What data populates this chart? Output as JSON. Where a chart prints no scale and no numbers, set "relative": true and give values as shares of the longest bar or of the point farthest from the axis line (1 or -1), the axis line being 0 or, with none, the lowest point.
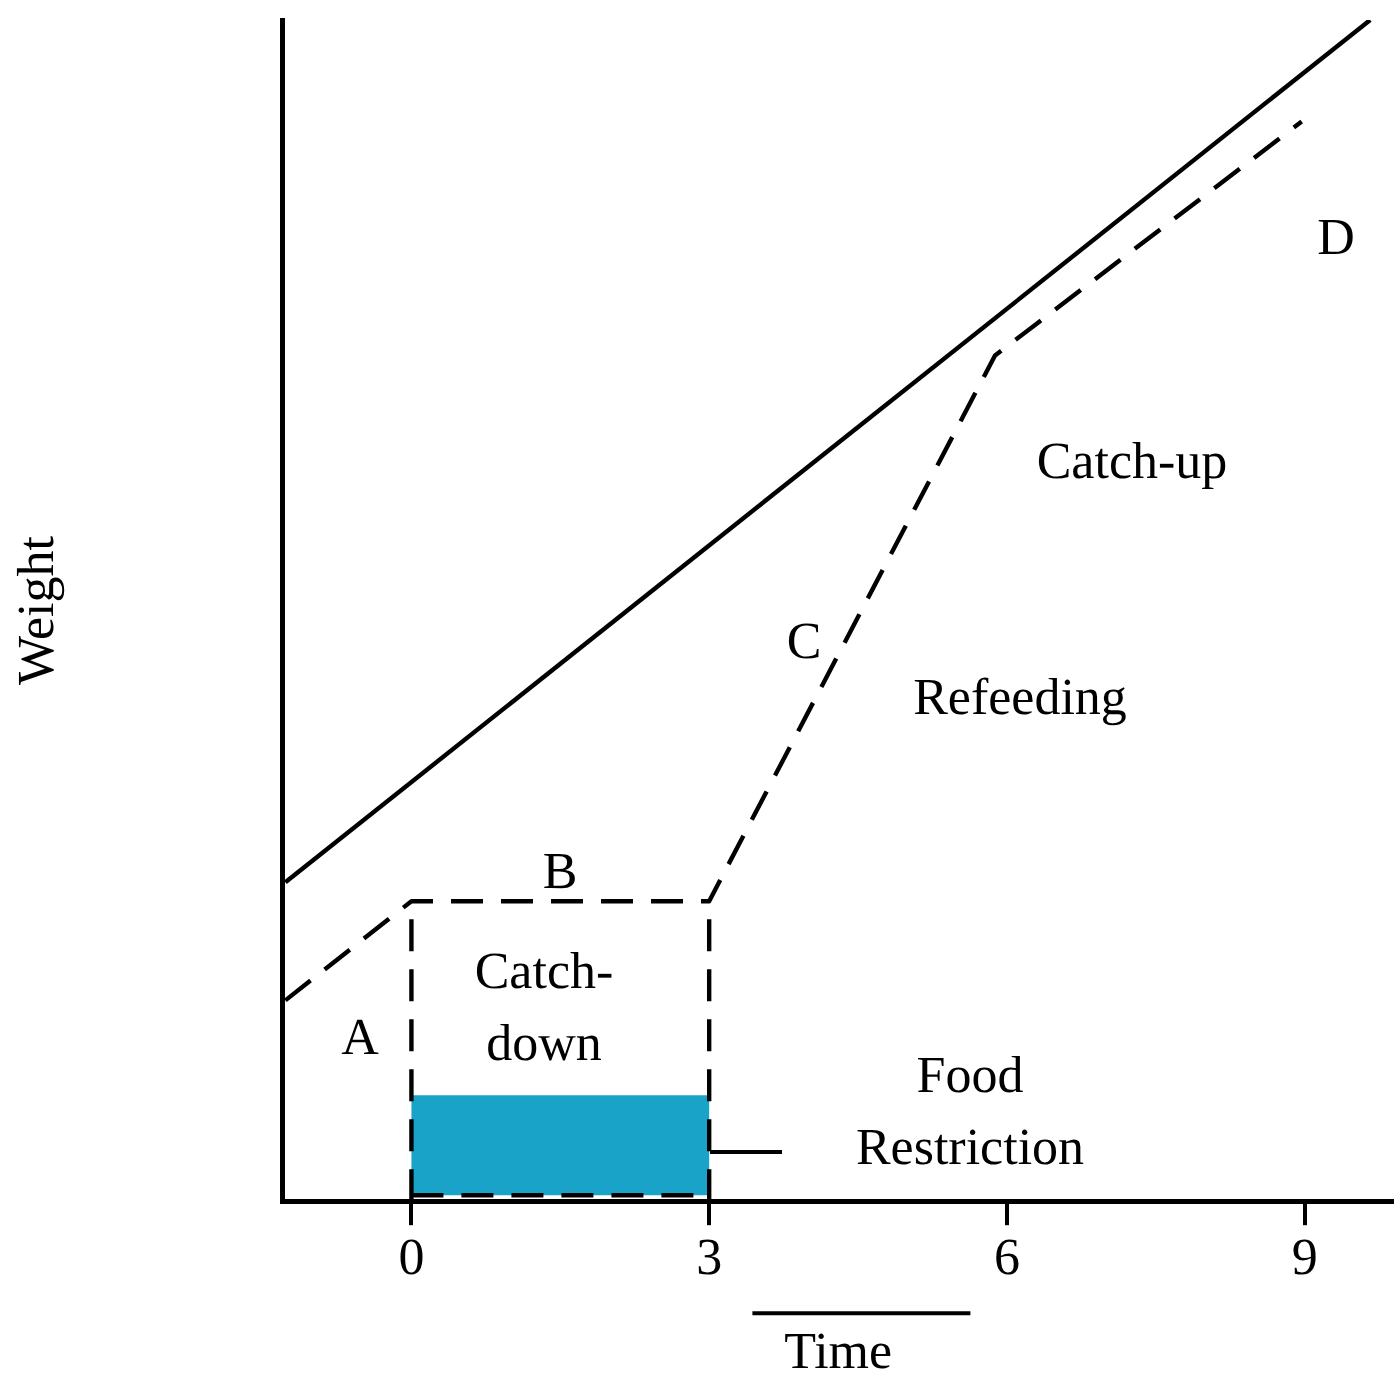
{
  "chart_data": {
    "type": "line",
    "relative": true,
    "xlabel": "Time",
    "ylabel": "Weight",
    "xlim": [
      -1.3,
      9.9
    ],
    "xticks": [
      0,
      3,
      6,
      9
    ],
    "grid": false,
    "legend": false,
    "marker": "none",
    "series": [
      {
        "color": "#000000",
        "line_style": "solid",
        "x": [
          -1.27,
          9.66
        ],
        "values": [
          0.27,
          1.0
        ]
      },
      {
        "color": "#000000",
        "line_style": "dashed",
        "x": [
          -1.27,
          0,
          3,
          5.88,
          8.97
        ],
        "values": [
          0.17,
          0.254,
          0.254,
          0.716,
          0.914
        ]
      },
      {
        "color": "#000000",
        "line_style": "dashed",
        "x": [
          0,
          0
        ],
        "values": [
          0,
          0.254
        ]
      },
      {
        "color": "#000000",
        "line_style": "dashed",
        "x": [
          3,
          3
        ],
        "values": [
          0,
          0.254
        ]
      },
      {
        "color": "#000000",
        "line_style": "dashed",
        "x": [
          0,
          3
        ],
        "values": [
          0.005,
          0.005
        ]
      }
    ],
    "bands": [
      {
        "axis": "x",
        "from": 0,
        "to": 3,
        "color": "#1aa3c8"
      }
    ],
    "annotations": [
      "A",
      "B",
      "Catch-\ndown",
      "C",
      "Refeeding",
      "Catch-up",
      "D",
      "Food\nRestriction"
    ]
  }
}
